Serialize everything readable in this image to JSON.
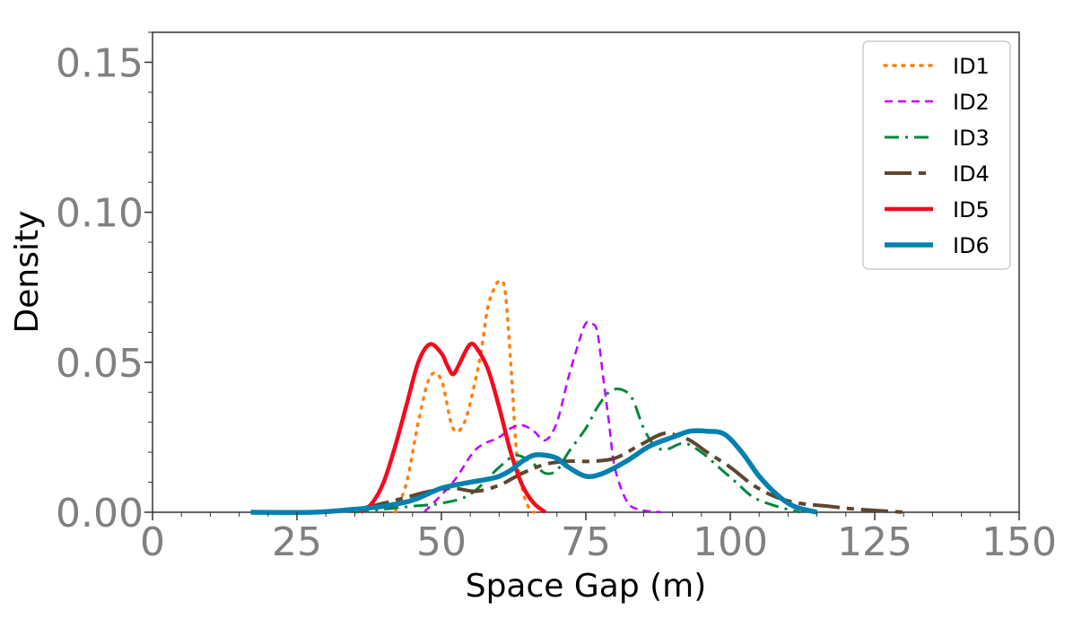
{
  "chart_data": {
    "type": "line",
    "title": "",
    "xlabel": "Space Gap (m)",
    "ylabel": "Density",
    "xlim": [
      0,
      150
    ],
    "ylim": [
      0,
      0.16
    ],
    "xticks": [
      0,
      25,
      50,
      75,
      100,
      125,
      150
    ],
    "xtick_labels": [
      "0",
      "25",
      "50",
      "75",
      "100",
      "125",
      "150"
    ],
    "yticks": [
      0.0,
      0.05,
      0.1,
      0.15
    ],
    "ytick_labels": [
      "0.00",
      "0.05",
      "0.10",
      "0.15"
    ],
    "grid": false,
    "legend_position": "top-right",
    "series": [
      {
        "name": "ID1",
        "color": "#ff7f0e",
        "dash": "dotted",
        "points": [
          [
            42,
            0.0
          ],
          [
            44,
            0.01
          ],
          [
            46,
            0.03
          ],
          [
            48,
            0.045
          ],
          [
            50,
            0.044
          ],
          [
            52,
            0.028
          ],
          [
            54,
            0.03
          ],
          [
            56,
            0.045
          ],
          [
            57,
            0.055
          ],
          [
            58,
            0.068
          ],
          [
            59,
            0.074
          ],
          [
            60,
            0.077
          ],
          [
            61,
            0.074
          ],
          [
            62,
            0.05
          ],
          [
            63,
            0.02
          ],
          [
            64,
            0.008
          ],
          [
            65,
            0.002
          ],
          [
            66,
            0.0
          ]
        ]
      },
      {
        "name": "ID2",
        "color": "#bf00ff",
        "dash": "dashed",
        "points": [
          [
            47,
            0.0
          ],
          [
            52,
            0.01
          ],
          [
            56,
            0.021
          ],
          [
            60,
            0.025
          ],
          [
            62,
            0.028
          ],
          [
            64,
            0.029
          ],
          [
            66,
            0.027
          ],
          [
            68,
            0.024
          ],
          [
            70,
            0.03
          ],
          [
            72,
            0.045
          ],
          [
            74,
            0.058
          ],
          [
            75,
            0.063
          ],
          [
            76,
            0.063
          ],
          [
            77,
            0.06
          ],
          [
            78,
            0.045
          ],
          [
            79,
            0.03
          ],
          [
            80,
            0.015
          ],
          [
            82,
            0.004
          ],
          [
            84,
            0.001
          ],
          [
            88,
            0.0
          ]
        ]
      },
      {
        "name": "ID3",
        "color": "#008837",
        "dash": "dashdot",
        "points": [
          [
            35,
            0.0
          ],
          [
            45,
            0.002
          ],
          [
            50,
            0.003
          ],
          [
            55,
            0.006
          ],
          [
            60,
            0.015
          ],
          [
            63,
            0.019
          ],
          [
            66,
            0.016
          ],
          [
            68,
            0.013
          ],
          [
            70,
            0.014
          ],
          [
            72,
            0.02
          ],
          [
            75,
            0.028
          ],
          [
            77,
            0.035
          ],
          [
            79,
            0.04
          ],
          [
            81,
            0.041
          ],
          [
            83,
            0.038
          ],
          [
            85,
            0.028
          ],
          [
            87,
            0.022
          ],
          [
            89,
            0.021
          ],
          [
            92,
            0.023
          ],
          [
            95,
            0.02
          ],
          [
            98,
            0.015
          ],
          [
            101,
            0.01
          ],
          [
            104,
            0.005
          ],
          [
            108,
            0.002
          ],
          [
            112,
            0.0
          ]
        ]
      },
      {
        "name": "ID4",
        "color": "#5e4630",
        "dash": "longdash",
        "points": [
          [
            28,
            0.0
          ],
          [
            35,
            0.001
          ],
          [
            40,
            0.003
          ],
          [
            44,
            0.005
          ],
          [
            48,
            0.007
          ],
          [
            52,
            0.008
          ],
          [
            56,
            0.007
          ],
          [
            60,
            0.009
          ],
          [
            64,
            0.013
          ],
          [
            68,
            0.016
          ],
          [
            72,
            0.017
          ],
          [
            76,
            0.017
          ],
          [
            80,
            0.018
          ],
          [
            84,
            0.022
          ],
          [
            88,
            0.026
          ],
          [
            90,
            0.026
          ],
          [
            93,
            0.024
          ],
          [
            96,
            0.02
          ],
          [
            100,
            0.015
          ],
          [
            104,
            0.009
          ],
          [
            108,
            0.005
          ],
          [
            112,
            0.003
          ],
          [
            117,
            0.002
          ],
          [
            122,
            0.001
          ],
          [
            130,
            0.0
          ]
        ]
      },
      {
        "name": "ID5",
        "color": "#f5091f",
        "dash": "solid",
        "points": [
          [
            36,
            0.0
          ],
          [
            38,
            0.003
          ],
          [
            40,
            0.01
          ],
          [
            42,
            0.022
          ],
          [
            44,
            0.036
          ],
          [
            46,
            0.05
          ],
          [
            48,
            0.056
          ],
          [
            50,
            0.053
          ],
          [
            51,
            0.049
          ],
          [
            52,
            0.046
          ],
          [
            53,
            0.049
          ],
          [
            54,
            0.053
          ],
          [
            55,
            0.056
          ],
          [
            56,
            0.055
          ],
          [
            58,
            0.048
          ],
          [
            60,
            0.035
          ],
          [
            62,
            0.02
          ],
          [
            64,
            0.009
          ],
          [
            66,
            0.003
          ],
          [
            68,
            0.0
          ]
        ]
      },
      {
        "name": "ID6",
        "color": "#0281b0",
        "dash": "solid",
        "points": [
          [
            17,
            0.0
          ],
          [
            28,
            0.0
          ],
          [
            35,
            0.001
          ],
          [
            40,
            0.002
          ],
          [
            45,
            0.004
          ],
          [
            50,
            0.008
          ],
          [
            55,
            0.01
          ],
          [
            58,
            0.011
          ],
          [
            60,
            0.012
          ],
          [
            62,
            0.014
          ],
          [
            64,
            0.017
          ],
          [
            66,
            0.019
          ],
          [
            68,
            0.019
          ],
          [
            70,
            0.018
          ],
          [
            72,
            0.015
          ],
          [
            75,
            0.012
          ],
          [
            78,
            0.013
          ],
          [
            82,
            0.017
          ],
          [
            86,
            0.022
          ],
          [
            90,
            0.025
          ],
          [
            93,
            0.027
          ],
          [
            96,
            0.027
          ],
          [
            99,
            0.026
          ],
          [
            102,
            0.02
          ],
          [
            105,
            0.012
          ],
          [
            108,
            0.006
          ],
          [
            111,
            0.002
          ],
          [
            115,
            0.0
          ]
        ]
      }
    ]
  }
}
